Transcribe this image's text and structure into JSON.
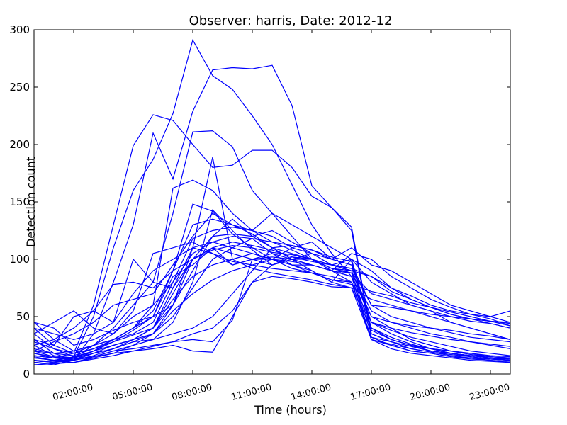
{
  "chart_data": {
    "type": "line",
    "title": "Observer: harris, Date: 2012-12",
    "xlabel": "Time (hours)",
    "ylabel": "Detection count",
    "xlim": [
      0,
      24
    ],
    "ylim": [
      0,
      300
    ],
    "x_unit": "hours",
    "x_ticks": [
      {
        "value": 2,
        "label": "02:00:00"
      },
      {
        "value": 5,
        "label": "05:00:00"
      },
      {
        "value": 8,
        "label": "08:00:00"
      },
      {
        "value": 11,
        "label": "11:00:00"
      },
      {
        "value": 14,
        "label": "14:00:00"
      },
      {
        "value": 17,
        "label": "17:00:00"
      },
      {
        "value": 20,
        "label": "20:00:00"
      },
      {
        "value": 23,
        "label": "23:00:00"
      }
    ],
    "y_ticks": [
      0,
      50,
      100,
      150,
      200,
      250,
      300
    ],
    "grid": false,
    "line_color": "#0000ff",
    "x": [
      0,
      1,
      2,
      3,
      4,
      5,
      6,
      7,
      8,
      9,
      10,
      11,
      12,
      13,
      14,
      15,
      16,
      17,
      18,
      19,
      20,
      21,
      22,
      23,
      24
    ],
    "series": [
      {
        "values": [
          40,
          25,
          18,
          60,
          130,
          199,
          226,
          221,
          200,
          180,
          182,
          195,
          195,
          180,
          155,
          145,
          125,
          32,
          25,
          20,
          18,
          15,
          13,
          12,
          10
        ]
      },
      {
        "values": [
          35,
          22,
          15,
          50,
          110,
          160,
          187,
          227,
          291,
          260,
          248,
          225,
          200,
          165,
          130,
          105,
          85,
          30,
          25,
          20,
          18,
          15,
          14,
          12,
          11
        ]
      },
      {
        "values": [
          30,
          18,
          12,
          35,
          80,
          130,
          210,
          170,
          229,
          265,
          267,
          266,
          269,
          234,
          164,
          145,
          128,
          35,
          28,
          22,
          19,
          16,
          14,
          13,
          12
        ]
      },
      {
        "values": [
          25,
          16,
          14,
          25,
          40,
          60,
          80,
          140,
          211,
          212,
          198,
          160,
          140,
          120,
          100,
          90,
          80,
          30,
          22,
          18,
          16,
          14,
          12,
          11,
          10
        ]
      },
      {
        "values": [
          20,
          15,
          12,
          20,
          30,
          40,
          60,
          162,
          169,
          160,
          140,
          125,
          140,
          130,
          120,
          110,
          100,
          40,
          30,
          25,
          20,
          18,
          15,
          13,
          12
        ]
      },
      {
        "values": [
          18,
          14,
          12,
          18,
          25,
          30,
          35,
          60,
          110,
          189,
          100,
          92,
          88,
          85,
          82,
          78,
          75,
          40,
          30,
          25,
          22,
          18,
          16,
          14,
          12
        ]
      },
      {
        "values": [
          45,
          30,
          20,
          25,
          30,
          40,
          50,
          90,
          148,
          142,
          122,
          110,
          100,
          95,
          95,
          90,
          85,
          50,
          40,
          30,
          25,
          20,
          18,
          15,
          14
        ]
      },
      {
        "values": [
          15,
          12,
          10,
          15,
          20,
          25,
          30,
          45,
          80,
          143,
          125,
          108,
          95,
          100,
          105,
          95,
          90,
          45,
          35,
          28,
          22,
          18,
          16,
          14,
          13
        ]
      },
      {
        "values": [
          12,
          10,
          14,
          20,
          25,
          30,
          40,
          60,
          90,
          120,
          135,
          120,
          110,
          100,
          100,
          95,
          100,
          80,
          70,
          60,
          55,
          45,
          40,
          35,
          30
        ]
      },
      {
        "values": [
          10,
          8,
          12,
          18,
          22,
          28,
          35,
          50,
          75,
          100,
          110,
          118,
          115,
          112,
          108,
          100,
          110,
          95,
          90,
          80,
          70,
          60,
          55,
          50,
          45
        ]
      },
      {
        "values": [
          14,
          12,
          15,
          20,
          25,
          30,
          40,
          70,
          100,
          110,
          105,
          100,
          95,
          100,
          95,
          90,
          105,
          100,
          85,
          75,
          65,
          58,
          52,
          48,
          42
        ]
      },
      {
        "values": [
          16,
          14,
          18,
          22,
          28,
          34,
          40,
          75,
          110,
          115,
          120,
          118,
          105,
          95,
          90,
          80,
          100,
          90,
          75,
          68,
          60,
          55,
          52,
          50,
          55
        ]
      },
      {
        "values": [
          20,
          18,
          20,
          25,
          30,
          35,
          45,
          80,
          118,
          125,
          128,
          125,
          115,
          108,
          100,
          95,
          90,
          85,
          72,
          65,
          58,
          52,
          48,
          46,
          44
        ]
      },
      {
        "values": [
          22,
          18,
          16,
          22,
          30,
          40,
          55,
          90,
          130,
          135,
          130,
          122,
          110,
          105,
          100,
          92,
          88,
          70,
          65,
          60,
          55,
          50,
          46,
          44,
          40
        ]
      },
      {
        "values": [
          18,
          15,
          14,
          20,
          28,
          38,
          50,
          85,
          95,
          110,
          115,
          112,
          108,
          102,
          98,
          95,
          92,
          60,
          58,
          55,
          52,
          50,
          48,
          46,
          45
        ]
      },
      {
        "values": [
          12,
          10,
          12,
          16,
          22,
          30,
          40,
          65,
          85,
          95,
          100,
          105,
          100,
          110,
          115,
          100,
          95,
          45,
          38,
          32,
          28,
          24,
          20,
          18,
          16
        ]
      },
      {
        "values": [
          8,
          9,
          10,
          14,
          18,
          25,
          35,
          55,
          70,
          82,
          90,
          95,
          100,
          98,
          95,
          90,
          85,
          35,
          28,
          24,
          20,
          18,
          16,
          15,
          14
        ]
      },
      {
        "values": [
          10,
          12,
          14,
          18,
          22,
          28,
          30,
          35,
          40,
          50,
          70,
          90,
          110,
          112,
          108,
          102,
          98,
          40,
          32,
          26,
          22,
          20,
          18,
          16,
          15
        ]
      },
      {
        "values": [
          14,
          12,
          12,
          15,
          20,
          22,
          25,
          28,
          35,
          40,
          55,
          80,
          95,
          102,
          100,
          92,
          88,
          38,
          30,
          25,
          22,
          20,
          17,
          15,
          14
        ]
      },
      {
        "values": [
          16,
          14,
          13,
          15,
          18,
          20,
          24,
          28,
          30,
          28,
          47,
          100,
          100,
          92,
          88,
          82,
          80,
          32,
          28,
          24,
          20,
          18,
          16,
          14,
          13
        ]
      },
      {
        "values": [
          12,
          11,
          10,
          13,
          16,
          20,
          22,
          25,
          20,
          19,
          50,
          80,
          85,
          83,
          80,
          76,
          75,
          30,
          26,
          22,
          19,
          17,
          15,
          13,
          12
        ]
      },
      {
        "values": [
          30,
          25,
          50,
          55,
          45,
          100,
          80,
          75,
          100,
          110,
          95,
          100,
          105,
          100,
          90,
          80,
          75,
          65,
          60,
          55,
          50,
          45,
          40,
          35,
          30
        ]
      },
      {
        "values": [
          35,
          45,
          55,
          40,
          35,
          50,
          60,
          80,
          105,
          115,
          110,
          105,
          100,
          95,
          88,
          82,
          78,
          72,
          68,
          62,
          58,
          54,
          50,
          46,
          42
        ]
      },
      {
        "values": [
          25,
          30,
          40,
          55,
          78,
          80,
          75,
          90,
          100,
          120,
          122,
          120,
          125,
          115,
          105,
          95,
          92,
          85,
          75,
          65,
          58,
          52,
          48,
          44,
          40
        ]
      },
      {
        "values": [
          20,
          28,
          35,
          45,
          60,
          65,
          70,
          95,
          120,
          140,
          130,
          125,
          120,
          110,
          105,
          100,
          95,
          60,
          50,
          45,
          40,
          36,
          32,
          30,
          28
        ]
      },
      {
        "values": [
          28,
          22,
          18,
          25,
          35,
          55,
          105,
          110,
          115,
          105,
          95,
          100,
          102,
          100,
          95,
          90,
          88,
          55,
          45,
          40,
          35,
          32,
          28,
          25,
          22
        ]
      },
      {
        "values": [
          40,
          35,
          30,
          35,
          45,
          70,
          90,
          100,
          110,
          105,
          98,
          95,
          92,
          90,
          88,
          85,
          80,
          45,
          40,
          36,
          33,
          30,
          28,
          26,
          24
        ]
      },
      {
        "values": [
          45,
          40,
          25,
          30,
          38,
          45,
          50,
          60,
          100,
          108,
          112,
          110,
          106,
          104,
          100,
          92,
          90,
          50,
          45,
          42,
          40,
          38,
          35,
          33,
          30
        ]
      }
    ]
  }
}
